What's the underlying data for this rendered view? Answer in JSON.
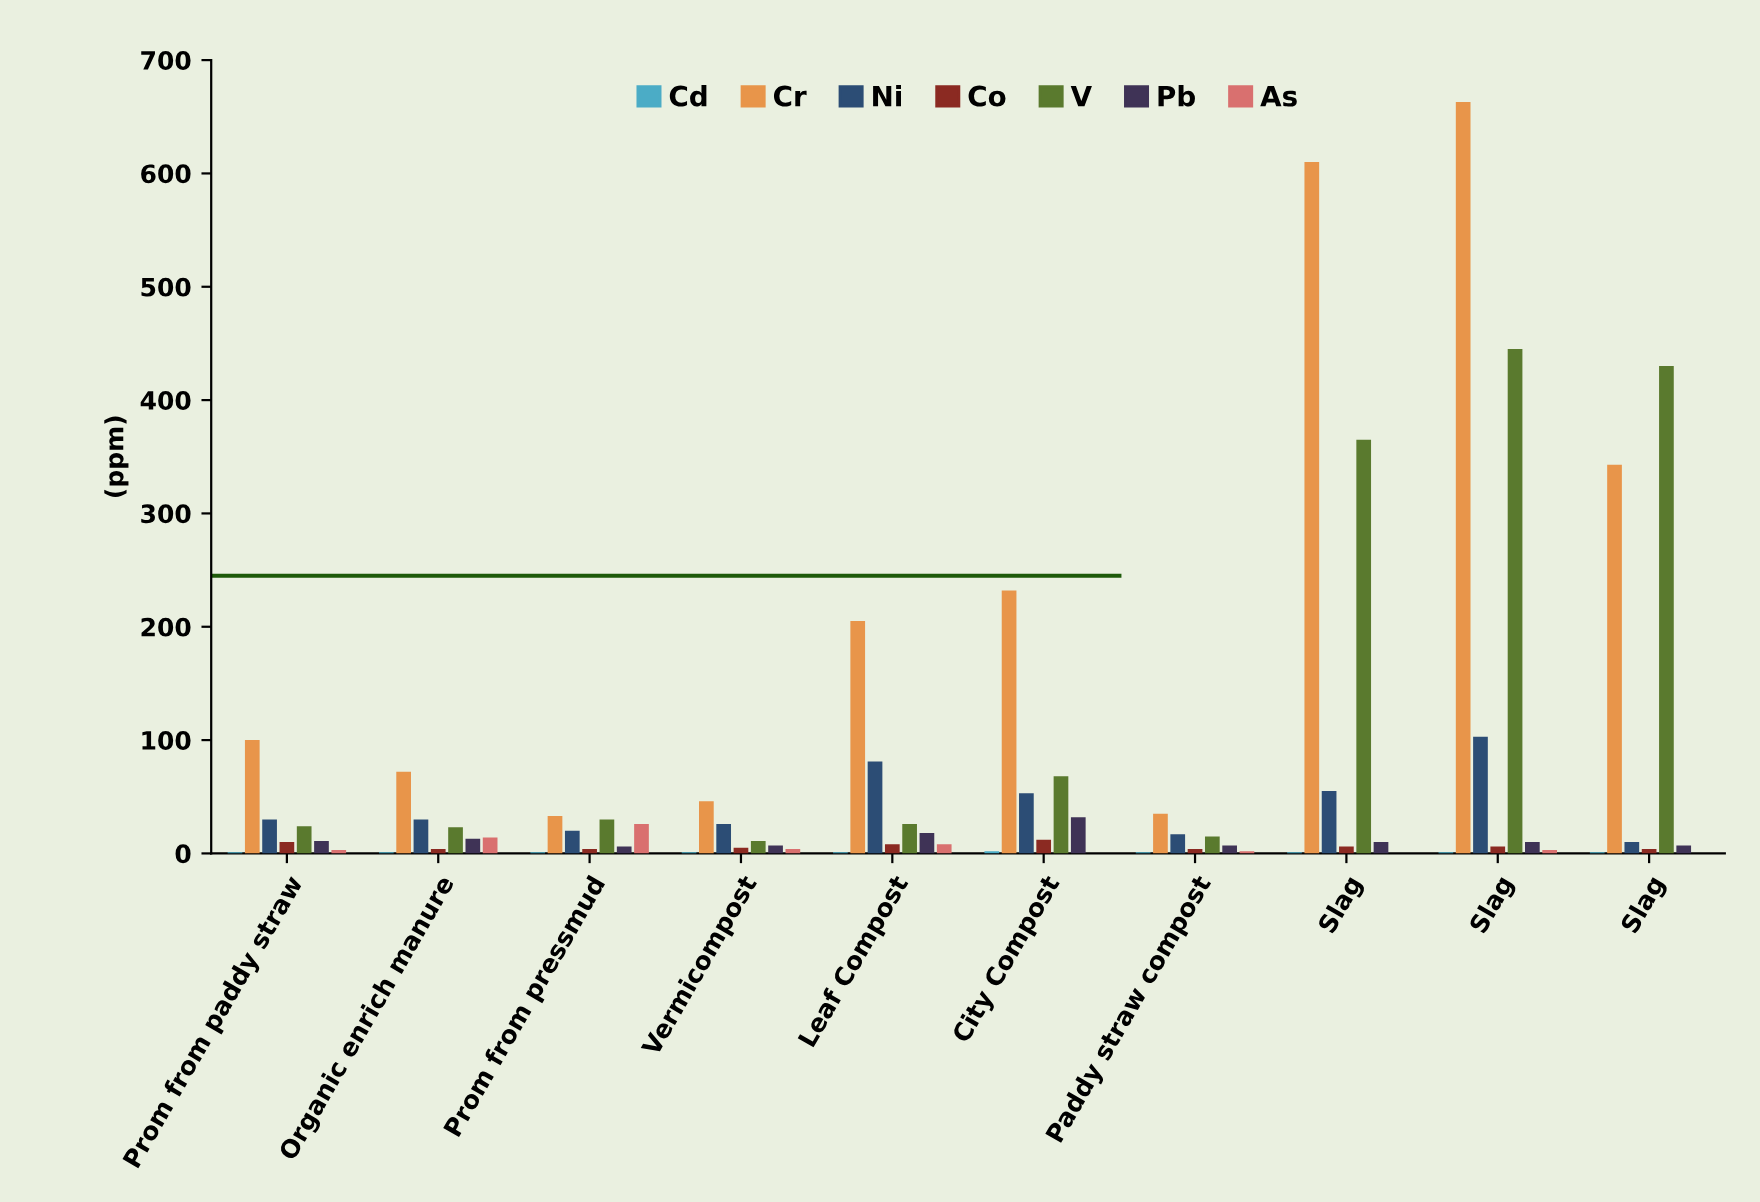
{
  "chart_data": {
    "type": "bar",
    "ylabel": "(ppm)",
    "categories": [
      "Prom from paddy straw",
      "Organic enrich manure",
      "Prom from pressmud",
      "Vermicompost",
      "Leaf Compost",
      "City Compost",
      "Paddy straw compost",
      "Slag",
      "Slag",
      "Slag"
    ],
    "series": [
      {
        "name": "Cd",
        "color": "#4bacc6",
        "values": [
          1,
          1,
          1,
          1,
          1,
          2,
          1,
          1,
          1,
          1
        ]
      },
      {
        "name": "Cr",
        "color": "#e8954a",
        "values": [
          100,
          72,
          33,
          46,
          205,
          232,
          35,
          610,
          663,
          343
        ]
      },
      {
        "name": "Ni",
        "color": "#2c4d75",
        "values": [
          30,
          30,
          20,
          26,
          81,
          53,
          17,
          55,
          103,
          10
        ]
      },
      {
        "name": "Co",
        "color": "#8b2a22",
        "values": [
          10,
          4,
          4,
          5,
          8,
          12,
          4,
          6,
          6,
          4
        ]
      },
      {
        "name": "V",
        "color": "#5a7a2e",
        "values": [
          24,
          23,
          30,
          11,
          26,
          68,
          15,
          365,
          445,
          430
        ]
      },
      {
        "name": "Pb",
        "color": "#3f3356",
        "values": [
          11,
          13,
          6,
          7,
          18,
          32,
          7,
          10,
          10,
          7
        ]
      },
      {
        "name": "As",
        "color": "#d9706f",
        "values": [
          3,
          14,
          26,
          4,
          8,
          null,
          2,
          null,
          3,
          null
        ]
      }
    ],
    "ylim": [
      0,
      700
    ],
    "yticks": [
      0,
      100,
      200,
      300,
      400,
      500,
      600,
      700
    ],
    "ref_lines": [
      {
        "axis": "y",
        "value": 245,
        "color": "#1e5a0a"
      }
    ],
    "legend": "top"
  }
}
